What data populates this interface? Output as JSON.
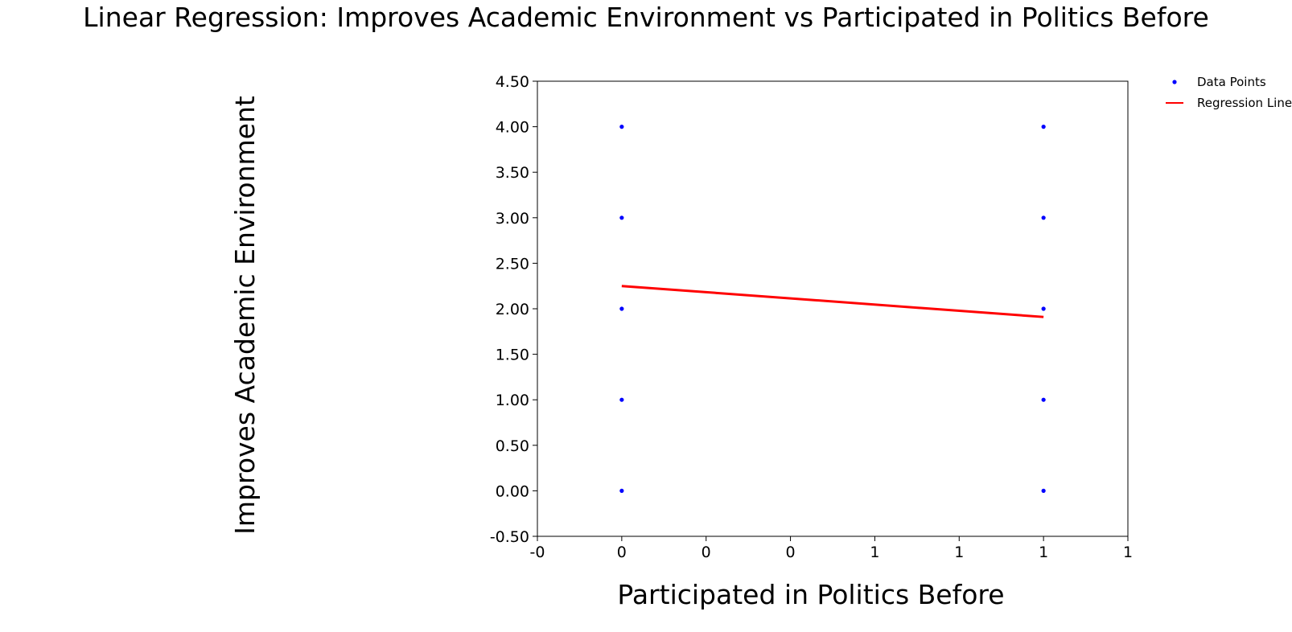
{
  "chart_data": {
    "type": "scatter",
    "title": "Linear Regression: Improves Academic Environment vs Participated in Politics Before",
    "xlabel": "Participated in Politics Before",
    "ylabel": "Improves Academic Environment",
    "xlim": [
      -0.2,
      1.2
    ],
    "ylim": [
      -0.5,
      4.5
    ],
    "x_ticks": [
      -0.2,
      0.0,
      0.2,
      0.4,
      0.6,
      0.8,
      1.0,
      1.2
    ],
    "x_tick_labels": [
      "-0",
      "0",
      "0",
      "0",
      "1",
      "1",
      "1",
      "1"
    ],
    "y_ticks": [
      -0.5,
      0.0,
      0.5,
      1.0,
      1.5,
      2.0,
      2.5,
      3.0,
      3.5,
      4.0,
      4.5
    ],
    "y_tick_labels": [
      "-0.50",
      "0.00",
      "0.50",
      "1.00",
      "1.50",
      "2.00",
      "2.50",
      "3.00",
      "3.50",
      "4.00",
      "4.50"
    ],
    "grid": false,
    "legend_position": "top-right, outside plot",
    "series": [
      {
        "name": "Data Points",
        "kind": "scatter",
        "color": "#0000ff",
        "points": [
          {
            "x": 0,
            "y": 0
          },
          {
            "x": 0,
            "y": 1
          },
          {
            "x": 0,
            "y": 2
          },
          {
            "x": 0,
            "y": 3
          },
          {
            "x": 0,
            "y": 4
          },
          {
            "x": 1,
            "y": 0
          },
          {
            "x": 1,
            "y": 1
          },
          {
            "x": 1,
            "y": 2
          },
          {
            "x": 1,
            "y": 3
          },
          {
            "x": 1,
            "y": 4
          }
        ]
      },
      {
        "name": "Regression Line",
        "kind": "line",
        "color": "#ff0000",
        "points": [
          {
            "x": 0,
            "y": 2.25
          },
          {
            "x": 1,
            "y": 1.91
          }
        ]
      }
    ]
  }
}
